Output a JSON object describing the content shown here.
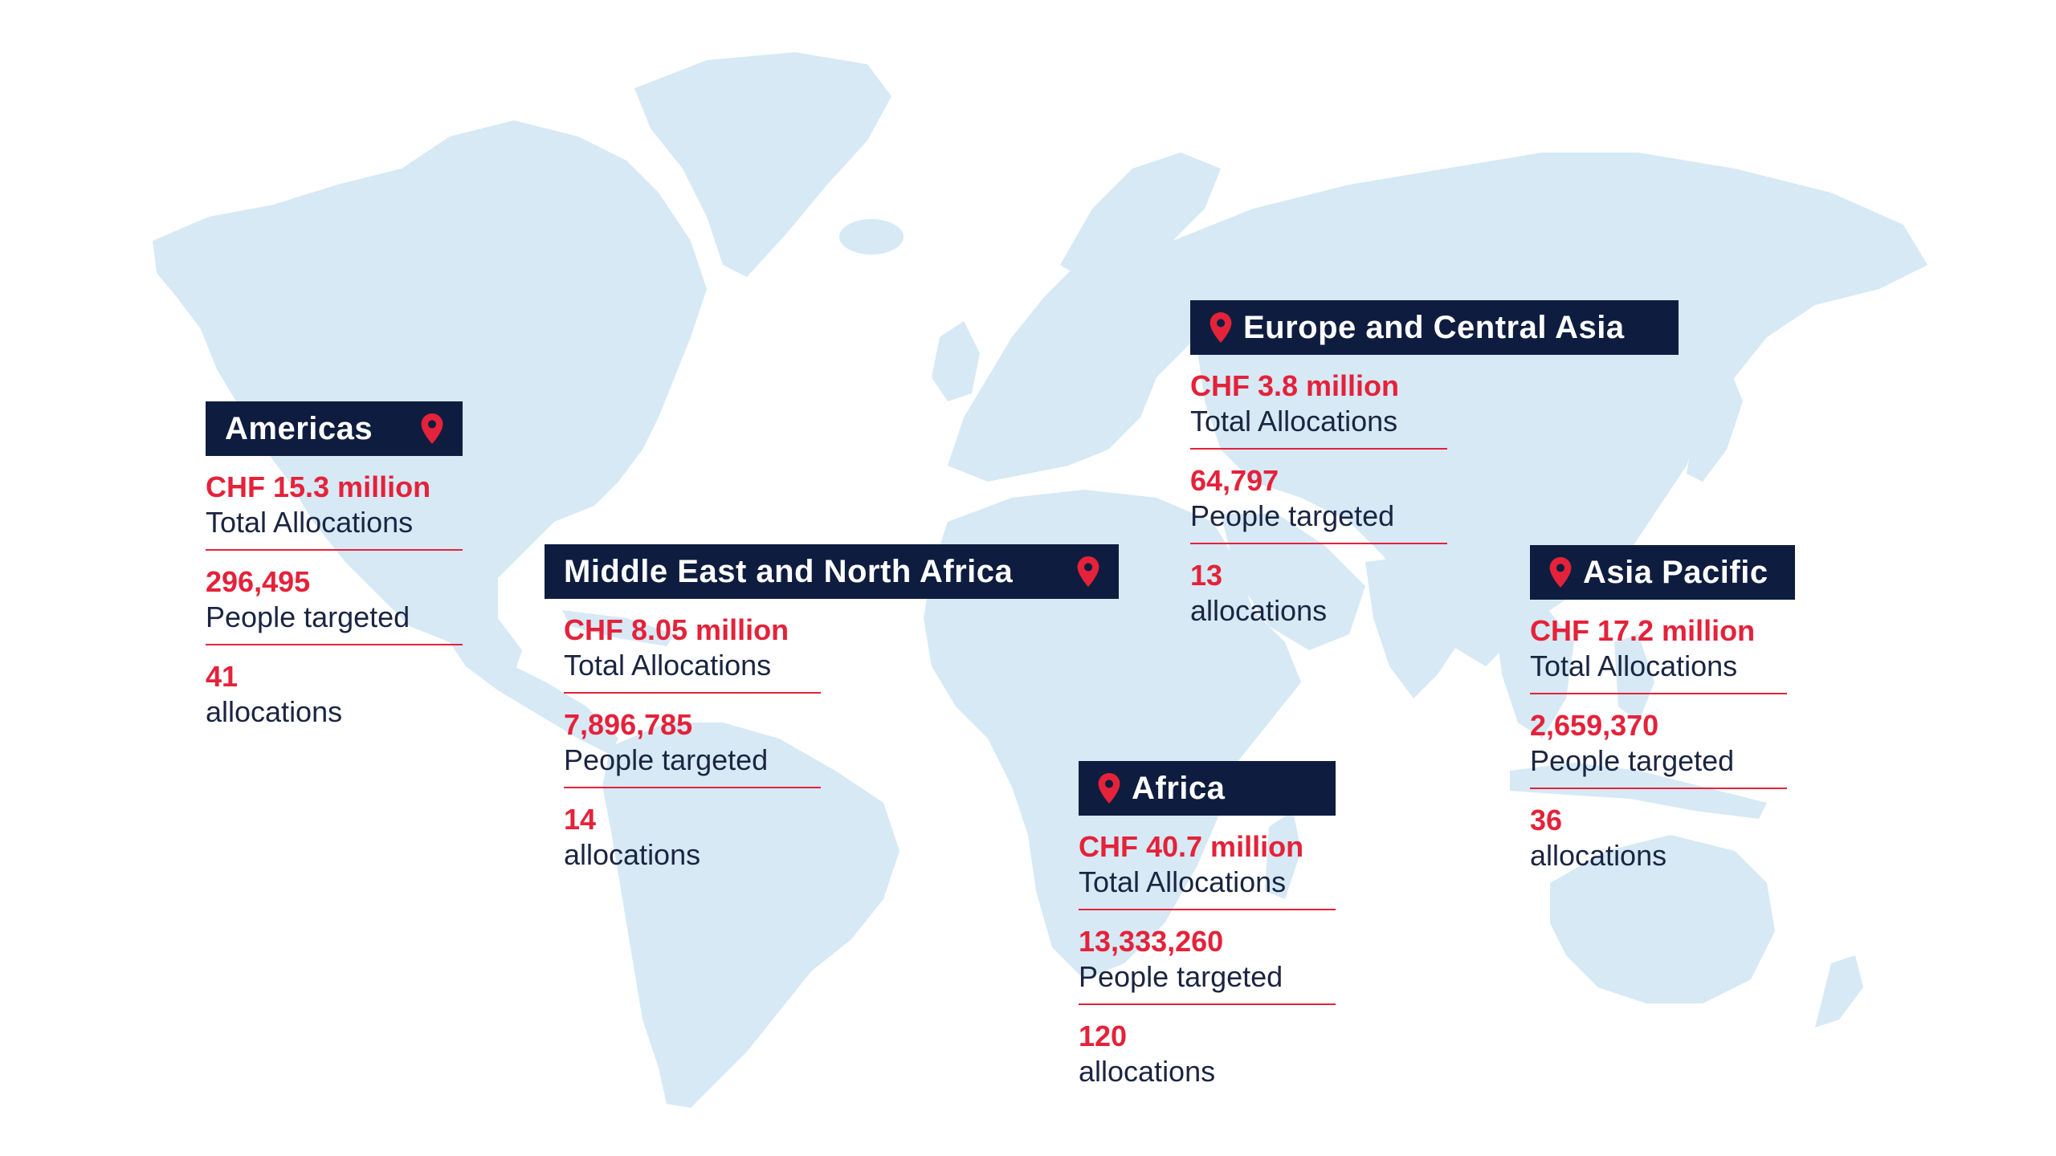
{
  "colors": {
    "land": "#d6e9f5",
    "header_bg": "#0e1d3f",
    "accent": "#e4223a",
    "text": "#1b2542"
  },
  "icons": {
    "marker": "map-pin-icon"
  },
  "regions": {
    "americas": {
      "name": "Americas",
      "total_allocations": {
        "value": "CHF 15.3 million",
        "label": "Total Allocations"
      },
      "people_targeted": {
        "value": "296,495",
        "label": "People targeted"
      },
      "allocations": {
        "value": "41",
        "label": "allocations"
      }
    },
    "mena": {
      "name": "Middle East and North Africa",
      "total_allocations": {
        "value": "CHF 8.05 million",
        "label": "Total Allocations"
      },
      "people_targeted": {
        "value": "7,896,785",
        "label": "People targeted"
      },
      "allocations": {
        "value": "14",
        "label": "allocations"
      }
    },
    "europe_central_asia": {
      "name": "Europe and Central Asia",
      "total_allocations": {
        "value": "CHF 3.8 million",
        "label": "Total Allocations"
      },
      "people_targeted": {
        "value": "64,797",
        "label": "People targeted"
      },
      "allocations": {
        "value": "13",
        "label": "allocations"
      }
    },
    "africa": {
      "name": "Africa",
      "total_allocations": {
        "value": "CHF 40.7 million",
        "label": "Total Allocations"
      },
      "people_targeted": {
        "value": "13,333,260",
        "label": "People targeted"
      },
      "allocations": {
        "value": "120",
        "label": "allocations"
      }
    },
    "asia_pacific": {
      "name": "Asia Pacific",
      "total_allocations": {
        "value": "CHF 17.2 million",
        "label": "Total Allocations"
      },
      "people_targeted": {
        "value": "2,659,370",
        "label": "People targeted"
      },
      "allocations": {
        "value": "36",
        "label": "allocations"
      }
    }
  }
}
